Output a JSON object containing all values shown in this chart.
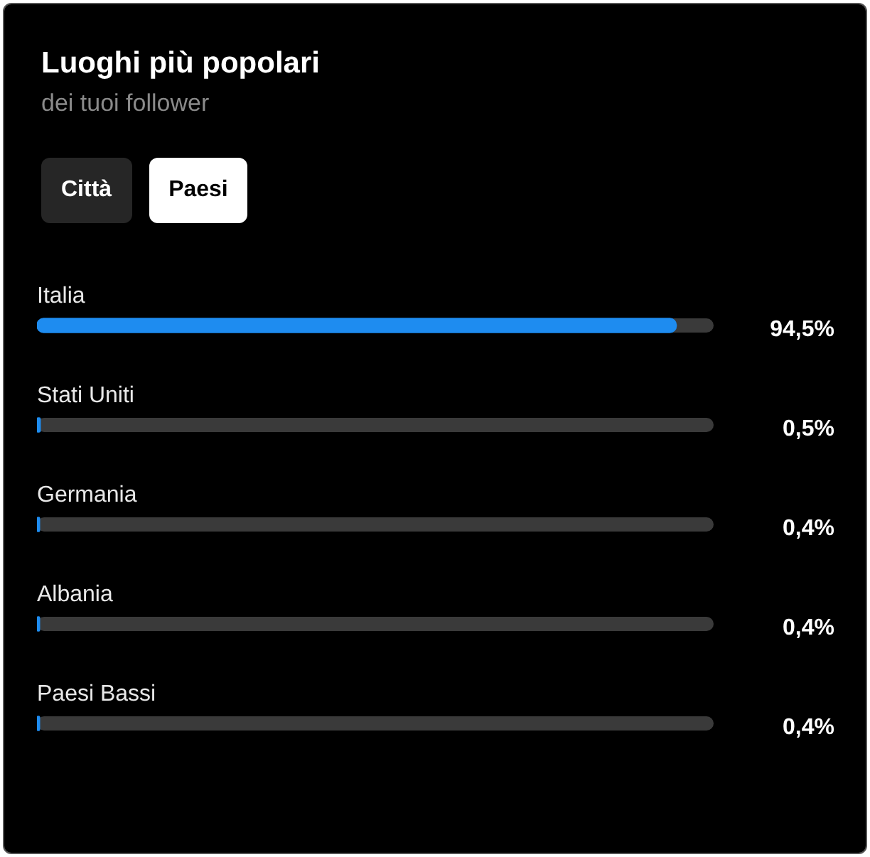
{
  "chart_data": {
    "type": "bar",
    "orientation": "horizontal",
    "title": "Luoghi più popolari",
    "subtitle": "dei tuoi follower",
    "annotations": [
      "Città",
      "Paesi"
    ],
    "categories": [
      "Italia",
      "Stati Uniti",
      "Germania",
      "Albania",
      "Paesi Bassi"
    ],
    "values": [
      94.5,
      0.5,
      0.4,
      0.4,
      0.4
    ],
    "value_labels": [
      "94,5%",
      "0,5%",
      "0,4%",
      "0,4%",
      "0,4%"
    ],
    "color": "#1e8cf0",
    "xlim": [
      0,
      100
    ],
    "tick_labels": "y",
    "legend": false
  }
}
